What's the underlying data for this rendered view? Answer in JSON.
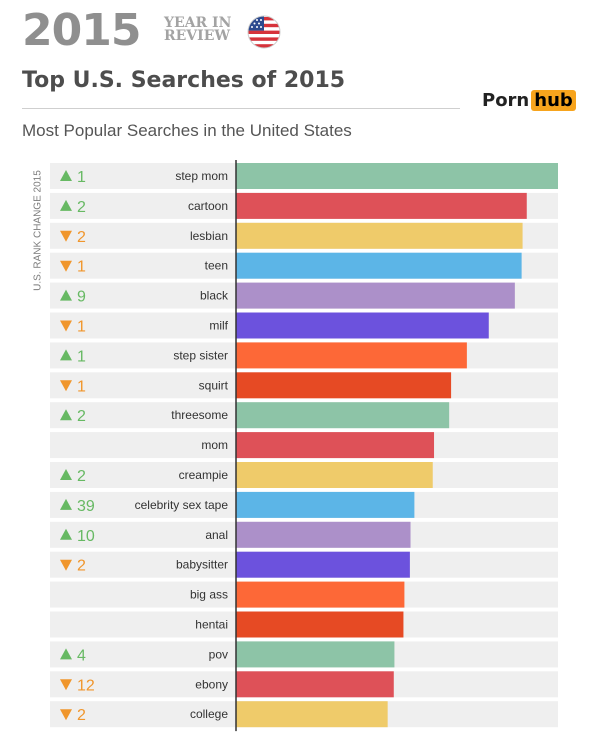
{
  "header": {
    "year": "2015",
    "yir_line1": "YEAR IN",
    "yir_line2": "REVIEW"
  },
  "title": "Top U.S. Searches of 2015",
  "subtitle": "Most Popular Searches in the United States",
  "logo": {
    "part1": "Porn",
    "part2": "hub"
  },
  "colors": {
    "up": "#67b963",
    "down": "#f0962c",
    "row_bg": "#efefef"
  },
  "chart_data": {
    "type": "bar",
    "orientation": "horizontal",
    "y_axis_label": "U.S. RANK CHANGE 2015",
    "categories": [
      "step mom",
      "cartoon",
      "lesbian",
      "teen",
      "black",
      "milf",
      "step sister",
      "squirt",
      "threesome",
      "mom",
      "creampie",
      "celebrity sex tape",
      "anal",
      "babysitter",
      "big ass",
      "hentai",
      "pov",
      "ebony",
      "college"
    ],
    "values": [
      100,
      90.3,
      89.0,
      88.7,
      86.6,
      78.5,
      71.7,
      66.8,
      66.2,
      61.5,
      61.1,
      55.4,
      54.2,
      54.0,
      52.3,
      52.0,
      49.2,
      49.0,
      47.1
    ],
    "rank_change": [
      {
        "dir": "up",
        "text": "1"
      },
      {
        "dir": "up",
        "text": "2"
      },
      {
        "dir": "down",
        "text": "2"
      },
      {
        "dir": "down",
        "text": "1"
      },
      {
        "dir": "up",
        "text": "9"
      },
      {
        "dir": "down",
        "text": "1"
      },
      {
        "dir": "up",
        "text": "1"
      },
      {
        "dir": "down",
        "text": "1"
      },
      {
        "dir": "up",
        "text": "2"
      },
      {
        "dir": "none",
        "text": ""
      },
      {
        "dir": "up",
        "text": "2"
      },
      {
        "dir": "up",
        "text": "39"
      },
      {
        "dir": "up",
        "text": "10"
      },
      {
        "dir": "down",
        "text": "2"
      },
      {
        "dir": "none",
        "text": ""
      },
      {
        "dir": "none",
        "text": ""
      },
      {
        "dir": "up",
        "text": "4"
      },
      {
        "dir": "down",
        "text": "12"
      },
      {
        "dir": "down",
        "text": "2"
      }
    ],
    "bar_colors": [
      "#8dc4a7",
      "#de5158",
      "#efcb6a",
      "#5cb5e7",
      "#ac90c9",
      "#6c52dd",
      "#fd6837",
      "#e64a24"
    ],
    "xlim": [
      0,
      100
    ]
  }
}
